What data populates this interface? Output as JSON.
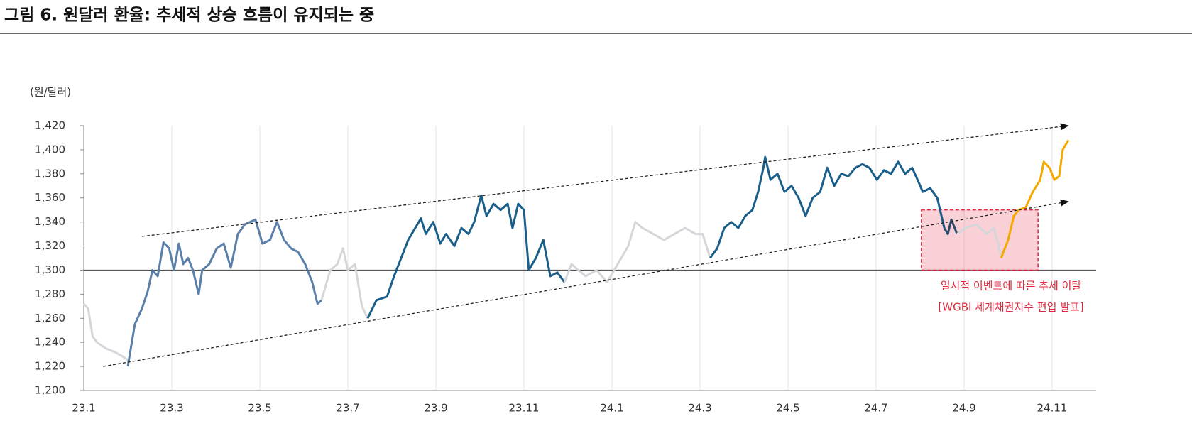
{
  "chart_data": {
    "type": "line",
    "title": "그림 6. 원달러 환율: 추세적 상승 흐름이 유지되는 중",
    "y_label": "(원/달러)",
    "xlim": [
      0,
      23
    ],
    "xticks": [
      {
        "value": 0,
        "label": "23.1"
      },
      {
        "value": 2,
        "label": "23.3"
      },
      {
        "value": 4,
        "label": "23.5"
      },
      {
        "value": 6,
        "label": "23.7"
      },
      {
        "value": 8,
        "label": "23.9"
      },
      {
        "value": 10,
        "label": "23.11"
      },
      {
        "value": 12,
        "label": "24.1"
      },
      {
        "value": 14,
        "label": "24.3"
      },
      {
        "value": 16,
        "label": "24.5"
      },
      {
        "value": 18,
        "label": "24.7"
      },
      {
        "value": 20,
        "label": "24.9"
      },
      {
        "value": 22,
        "label": "24.11"
      }
    ],
    "ylim": [
      1200,
      1420
    ],
    "yticks": [
      {
        "value": 1200,
        "label": "1,200"
      },
      {
        "value": 1220,
        "label": "1,220"
      },
      {
        "value": 1240,
        "label": "1,240"
      },
      {
        "value": 1260,
        "label": "1,260"
      },
      {
        "value": 1280,
        "label": "1,280"
      },
      {
        "value": 1300,
        "label": "1,300"
      },
      {
        "value": 1320,
        "label": "1,320"
      },
      {
        "value": 1340,
        "label": "1,340"
      },
      {
        "value": 1360,
        "label": "1,360"
      },
      {
        "value": 1380,
        "label": "1,380"
      },
      {
        "value": 1400,
        "label": "1,400"
      },
      {
        "value": 1420,
        "label": "1,420"
      }
    ],
    "grid": true,
    "baseline": 1300,
    "series": [
      {
        "color": "#d4d6d9",
        "x": [
          0,
          0.1,
          0.2,
          0.3,
          0.5,
          0.7,
          0.9,
          1.0
        ],
        "values": [
          1272,
          1268,
          1245,
          1240,
          1235,
          1232,
          1228,
          1225
        ]
      },
      {
        "color": "#5a80aa",
        "x": [
          1.0,
          1.16,
          1.32,
          1.45,
          1.56,
          1.68,
          1.81,
          1.94,
          2.05,
          2.16,
          2.26,
          2.37,
          2.48,
          2.61,
          2.69,
          2.85,
          3.02,
          3.18,
          3.34,
          3.5,
          3.66,
          3.9,
          4.06,
          4.23,
          4.39,
          4.55,
          4.71,
          4.87,
          5.03,
          5.19,
          5.31,
          5.4
        ],
        "values": [
          1220,
          1255,
          1268,
          1282,
          1300,
          1295,
          1323,
          1318,
          1300,
          1322,
          1305,
          1310,
          1300,
          1280,
          1300,
          1305,
          1318,
          1322,
          1302,
          1330,
          1338,
          1342,
          1322,
          1325,
          1340,
          1325,
          1318,
          1315,
          1305,
          1290,
          1272,
          1275
        ]
      },
      {
        "color": "#d4d6d9",
        "x": [
          5.4,
          5.6,
          5.76,
          5.89,
          6.0,
          6.16,
          6.32,
          6.45
        ],
        "values": [
          1275,
          1300,
          1305,
          1318,
          1300,
          1305,
          1270,
          1260
        ]
      },
      {
        "color": "#1a5e8a",
        "x": [
          6.45,
          6.65,
          6.89,
          7.05,
          7.21,
          7.37,
          7.53,
          7.66,
          7.77,
          7.94,
          8.1,
          8.23,
          8.42,
          8.58,
          8.74,
          8.87,
          9.03,
          9.15,
          9.31,
          9.47,
          9.63,
          9.74,
          9.87,
          10.0,
          10.11,
          10.27,
          10.44,
          10.6,
          10.76,
          10.92
        ],
        "values": [
          1260,
          1275,
          1278,
          1295,
          1310,
          1325,
          1335,
          1343,
          1330,
          1340,
          1322,
          1330,
          1320,
          1335,
          1330,
          1340,
          1362,
          1345,
          1355,
          1350,
          1355,
          1335,
          1355,
          1350,
          1300,
          1310,
          1325,
          1295,
          1298,
          1290
        ]
      },
      {
        "color": "#d4d6d9",
        "x": [
          10.92,
          11.08,
          11.24,
          11.4,
          11.65,
          11.89,
          12.13,
          12.37,
          12.53,
          12.69,
          12.94,
          13.18,
          13.42,
          13.66,
          13.9,
          14.06,
          14.23
        ],
        "values": [
          1290,
          1305,
          1300,
          1295,
          1300,
          1290,
          1305,
          1320,
          1340,
          1335,
          1330,
          1325,
          1330,
          1335,
          1330,
          1330,
          1310
        ]
      },
      {
        "color": "#1a5e8a",
        "x": [
          14.23,
          14.39,
          14.55,
          14.71,
          14.87,
          15.03,
          15.19,
          15.32,
          15.44,
          15.48,
          15.6,
          15.76,
          15.92,
          16.08,
          16.24,
          16.4,
          16.56,
          16.73,
          16.89,
          17.05,
          17.21,
          17.37,
          17.53,
          17.69,
          17.85,
          18.02,
          18.18,
          18.34,
          18.5,
          18.66,
          18.82,
          18.98,
          19.06,
          19.23,
          19.39,
          19.55
        ],
        "values": [
          1310,
          1318,
          1335,
          1340,
          1335,
          1345,
          1350,
          1365,
          1385,
          1394,
          1375,
          1380,
          1365,
          1370,
          1360,
          1345,
          1360,
          1365,
          1385,
          1370,
          1380,
          1378,
          1385,
          1388,
          1385,
          1375,
          1383,
          1380,
          1390,
          1380,
          1385,
          1372,
          1365,
          1368,
          1360,
          1335
        ]
      },
      {
        "color": "#2d4a6b",
        "x": [
          19.55,
          19.63,
          19.71,
          19.84
        ],
        "values": [
          1335,
          1330,
          1342,
          1330
        ]
      },
      {
        "color": "#d4d6d9",
        "x": [
          19.84,
          20.03,
          20.27,
          20.52,
          20.68,
          20.84
        ],
        "values": [
          1330,
          1335,
          1338,
          1330,
          1335,
          1312
        ]
      },
      {
        "color": "#f5a800",
        "x": [
          20.84,
          21.0,
          21.13,
          21.24,
          21.4,
          21.56,
          21.73,
          21.81,
          21.94,
          22.05,
          22.16,
          22.24,
          22.37
        ],
        "values": [
          1310,
          1325,
          1345,
          1350,
          1352,
          1365,
          1375,
          1390,
          1385,
          1375,
          1378,
          1400,
          1408
        ]
      }
    ],
    "trend_lines": [
      {
        "x": [
          1.32,
          22.37
        ],
        "values": [
          1328,
          1420
        ]
      },
      {
        "x": [
          0.44,
          22.37
        ],
        "values": [
          1220,
          1357
        ]
      }
    ],
    "highlight": {
      "x": [
        19.03,
        21.68
      ],
      "y": [
        1300,
        1350
      ]
    },
    "annotations": [
      "일시적 이벤트에 따른 추세 이탈",
      "[WGBI 세계채권지수 편입 발표]"
    ]
  }
}
